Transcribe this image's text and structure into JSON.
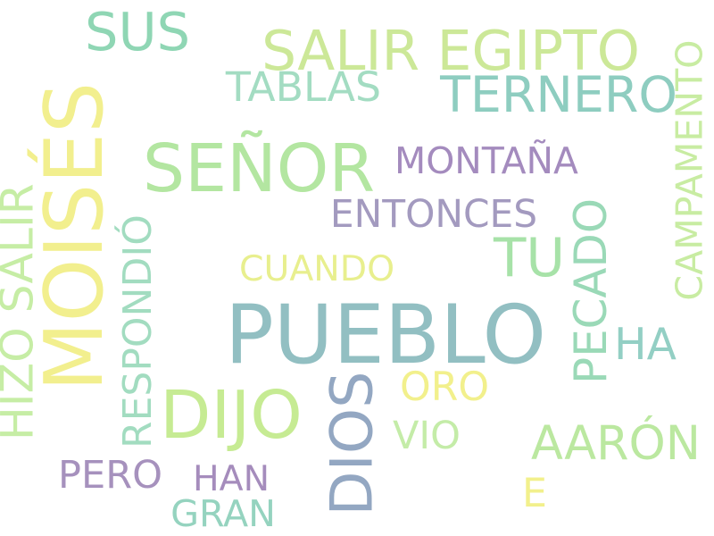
{
  "words": [
    {
      "text": "PUEBLO",
      "color": "#92bfc2",
      "vertical": false
    },
    {
      "text": "MOISÉS",
      "color": "#f2ef8e",
      "vertical": true
    },
    {
      "text": "SEÑOR",
      "color": "#b3e6a1",
      "vertical": false
    },
    {
      "text": "DIOS",
      "color": "#93a7c2",
      "vertical": true
    },
    {
      "text": "TU",
      "color": "#a7e2a8",
      "vertical": false
    },
    {
      "text": "DIJO",
      "color": "#c6eb93",
      "vertical": false
    },
    {
      "text": "TERNERO",
      "color": "#8ecdc0",
      "vertical": false
    },
    {
      "text": "SALIR EGIPTO",
      "color": "#cce898",
      "vertical": false
    },
    {
      "text": "AARÓN",
      "color": "#bbe8a0",
      "vertical": false
    },
    {
      "text": "SUS",
      "color": "#8fd6b4",
      "vertical": false
    },
    {
      "text": "PECADO",
      "color": "#9ad9b7",
      "vertical": true
    },
    {
      "text": "HA",
      "color": "#93cfc4",
      "vertical": false
    },
    {
      "text": "MONTAÑA",
      "color": "#a48bbe",
      "vertical": false
    },
    {
      "text": "ENTONCES",
      "color": "#a39abf",
      "vertical": false
    },
    {
      "text": "ORO",
      "color": "#f2f08c",
      "vertical": false
    },
    {
      "text": "CAMPAMENTO",
      "color": "#c8eca2",
      "vertical": true
    },
    {
      "text": "RESPONDIÓ",
      "color": "#a2dcc0",
      "vertical": true
    },
    {
      "text": "HIZO SALIR",
      "color": "#c6eda5",
      "vertical": true
    },
    {
      "text": "CUANDO",
      "color": "#e8ef8e",
      "vertical": false
    },
    {
      "text": "TABLAS",
      "color": "#a3dcc2",
      "vertical": false
    },
    {
      "text": "PERO",
      "color": "#a691bd",
      "vertical": false
    },
    {
      "text": "HAN",
      "color": "#a58cbc",
      "vertical": false
    },
    {
      "text": "GRAN",
      "color": "#95d3bf",
      "vertical": false
    },
    {
      "text": "VIO",
      "color": "#c4eca8",
      "vertical": false
    },
    {
      "text": "E",
      "color": "#f2f08c",
      "vertical": false
    }
  ]
}
